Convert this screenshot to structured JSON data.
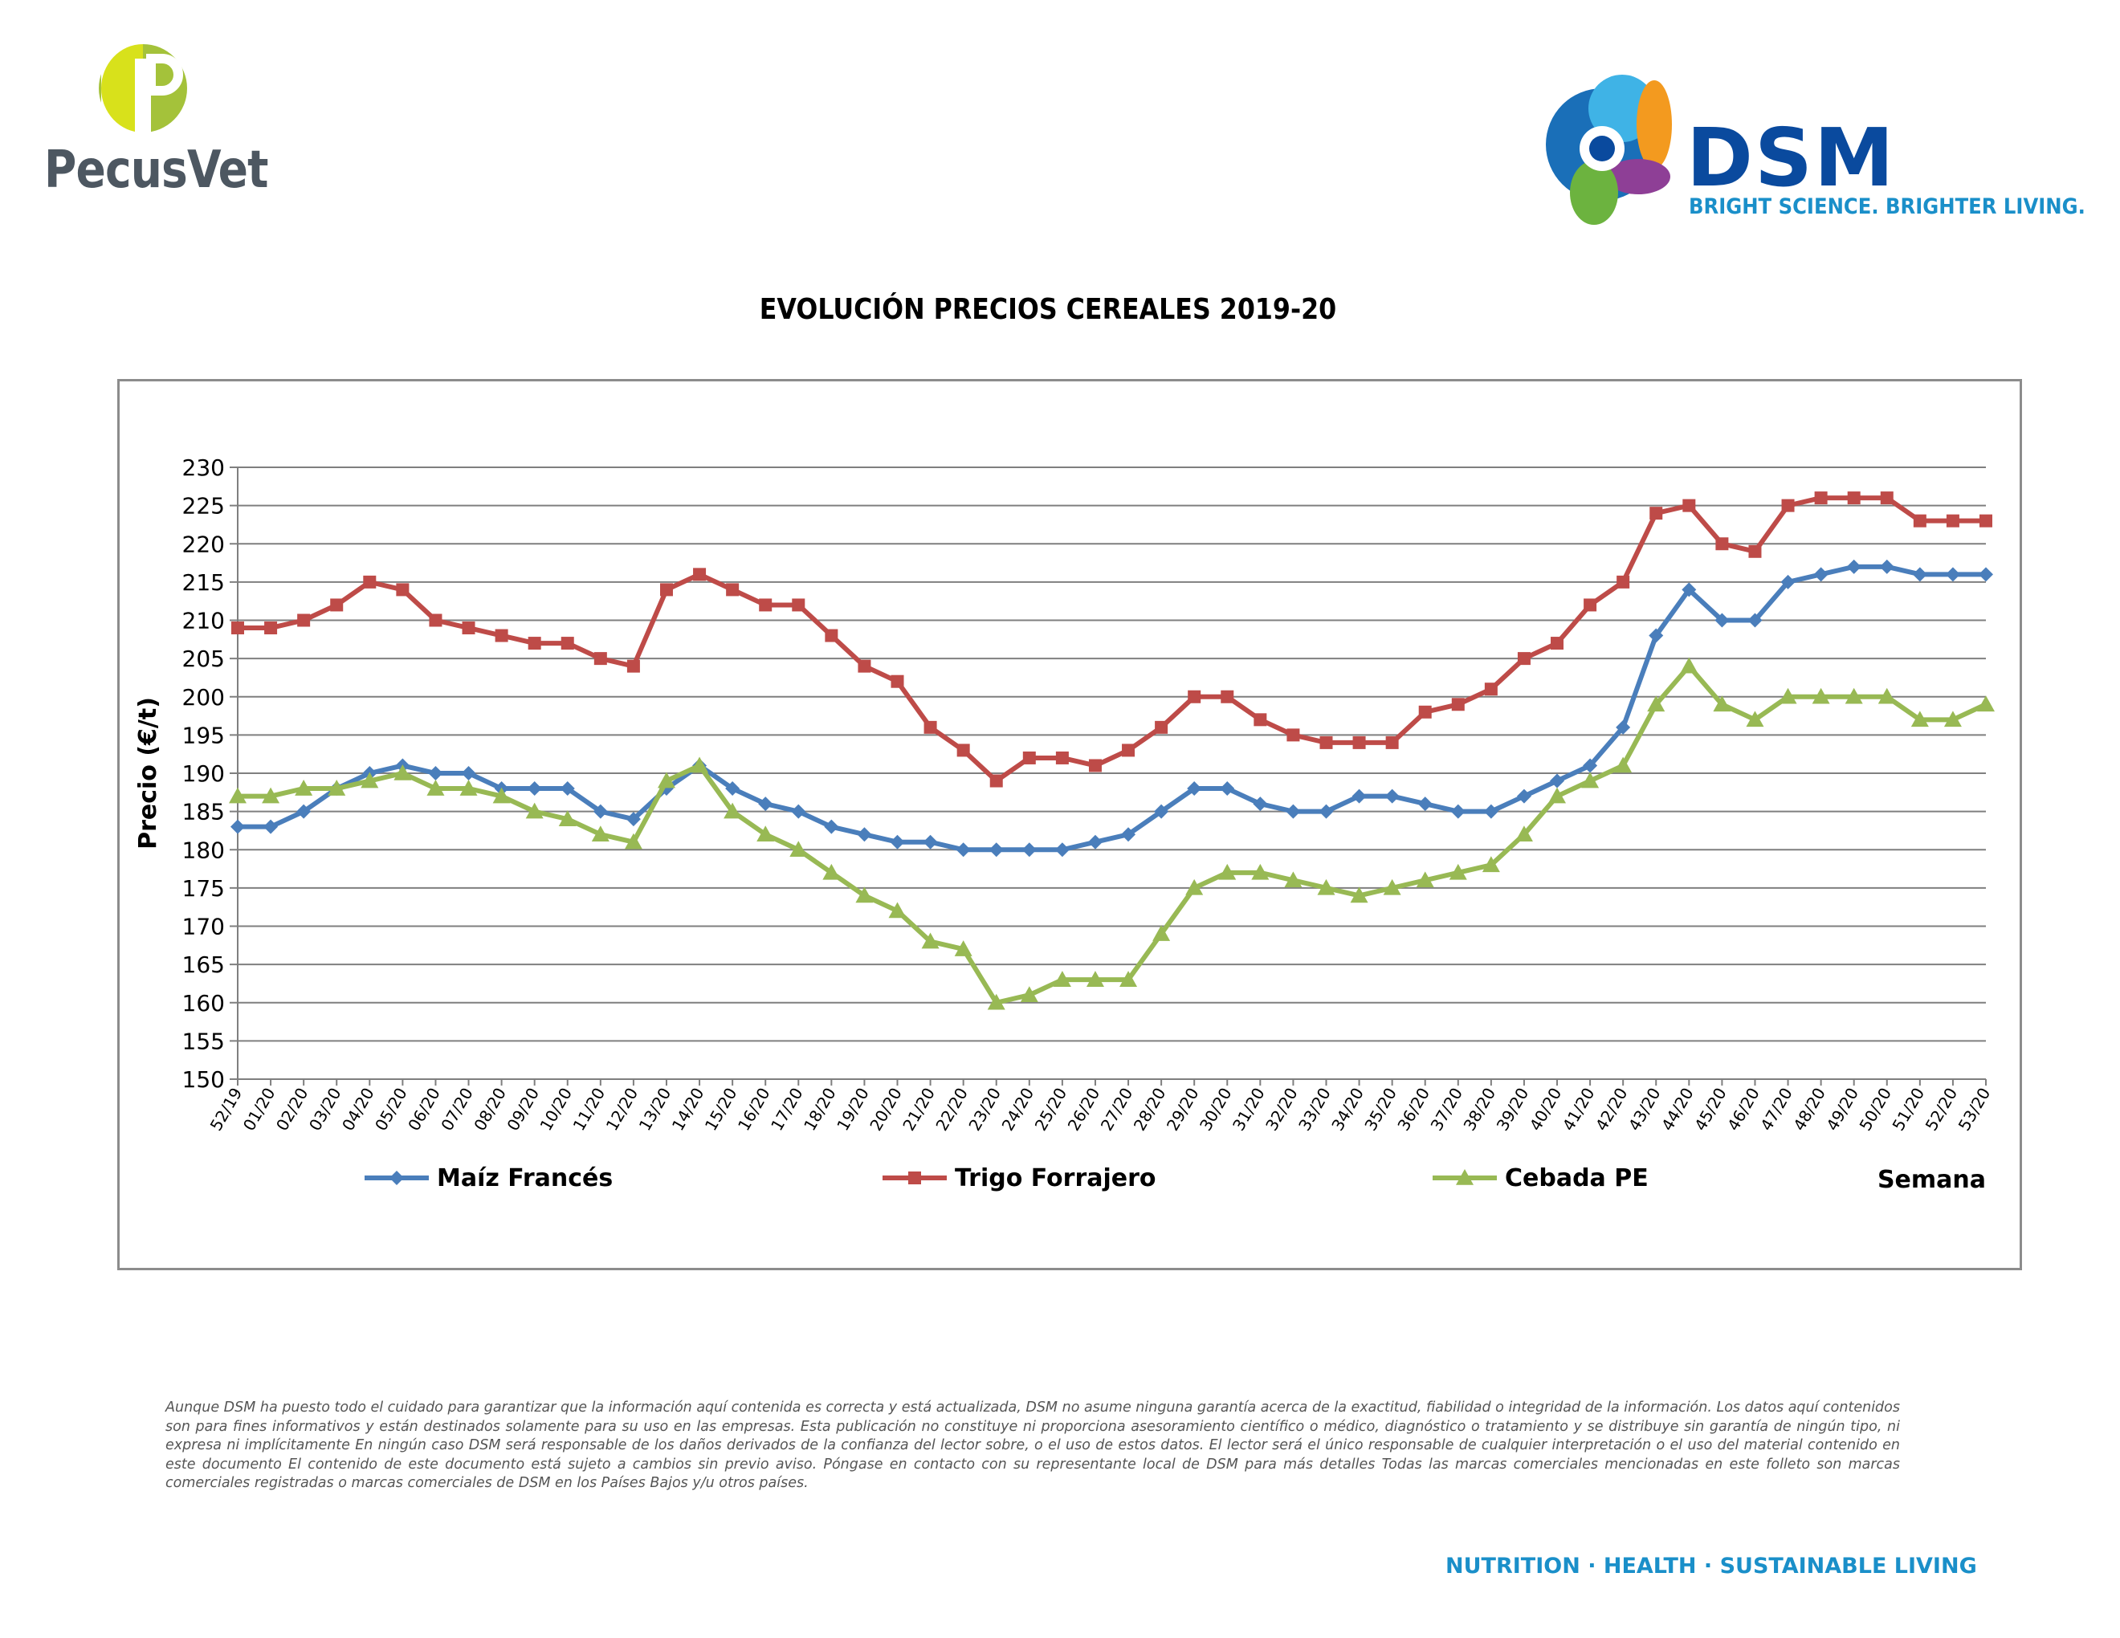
{
  "logos": {
    "pecusvet": {
      "name": "PecusVet",
      "color": "#a4c23a",
      "text_color": "#4d5761"
    },
    "dsm": {
      "name": "DSM",
      "tagline": "BRIGHT SCIENCE. BRIGHTER LIVING.",
      "color": "#0a4a9e",
      "tag_color": "#1a8fc9"
    }
  },
  "chart_data": {
    "type": "line",
    "title": "EVOLUCIÓN PRECIOS CEREALES 2019-20",
    "ylabel": "Precio (€/t)",
    "xlabel": "Semana",
    "ylim": [
      150,
      230
    ],
    "ytick_step": 5,
    "grid": true,
    "legend_position": "bottom",
    "categories": [
      "52/19",
      "01/20",
      "02/20",
      "03/20",
      "04/20",
      "05/20",
      "06/20",
      "07/20",
      "08/20",
      "09/20",
      "10/20",
      "11/20",
      "12/20",
      "13/20",
      "14/20",
      "15/20",
      "16/20",
      "17/20",
      "18/20",
      "19/20",
      "20/20",
      "21/20",
      "22/20",
      "23/20",
      "24/20",
      "25/20",
      "26/20",
      "27/20",
      "28/20",
      "29/20",
      "30/20",
      "31/20",
      "32/20",
      "33/20",
      "34/20",
      "35/20",
      "36/20",
      "37/20",
      "38/20",
      "39/20",
      "40/20",
      "41/20",
      "42/20",
      "43/20",
      "44/20",
      "45/20",
      "46/20",
      "47/20",
      "48/20",
      "49/20",
      "50/20",
      "51/20",
      "52/20",
      "53/20"
    ],
    "series": [
      {
        "name": "Maíz Francés",
        "color": "#4a7ebb",
        "marker": "diamond",
        "values": [
          183,
          183,
          185,
          188,
          190,
          191,
          190,
          190,
          188,
          188,
          188,
          185,
          184,
          188,
          191,
          188,
          186,
          185,
          183,
          182,
          181,
          181,
          180,
          180,
          180,
          180,
          181,
          182,
          185,
          188,
          188,
          186,
          185,
          185,
          187,
          187,
          186,
          185,
          185,
          187,
          189,
          191,
          196,
          208,
          214,
          210,
          210,
          215,
          216,
          217,
          217,
          216,
          216,
          216
        ]
      },
      {
        "name": "Trigo Forrajero",
        "color": "#be4b48",
        "marker": "square",
        "values": [
          209,
          209,
          210,
          212,
          215,
          214,
          210,
          209,
          208,
          207,
          207,
          205,
          204,
          214,
          216,
          214,
          212,
          212,
          208,
          204,
          202,
          196,
          193,
          189,
          192,
          192,
          191,
          193,
          196,
          200,
          200,
          197,
          195,
          194,
          194,
          194,
          198,
          199,
          201,
          205,
          207,
          212,
          215,
          224,
          225,
          220,
          219,
          225,
          226,
          226,
          226,
          223,
          223,
          223
        ]
      },
      {
        "name": "Cebada PE",
        "color": "#98b954",
        "marker": "triangle",
        "values": [
          187,
          187,
          188,
          188,
          189,
          190,
          188,
          188,
          187,
          185,
          184,
          182,
          181,
          189,
          191,
          185,
          182,
          180,
          177,
          174,
          172,
          168,
          167,
          160,
          161,
          163,
          163,
          163,
          169,
          175,
          177,
          177,
          176,
          175,
          174,
          175,
          176,
          177,
          178,
          182,
          187,
          189,
          191,
          199,
          204,
          199,
          197,
          200,
          200,
          200,
          200,
          197,
          197,
          199
        ]
      }
    ]
  },
  "disclaimer": "Aunque DSM ha puesto todo el cuidado para garantizar que la información aquí contenida es correcta y está actualizada, DSM no asume ninguna garantía acerca de la exactitud, fiabilidad o integridad de la información. Los datos aquí contenidos son para fines informativos y están destinados solamente para su uso en las empresas. Esta publicación no constituye ni proporciona asesoramiento científico o médico, diagnóstico o tratamiento y se distribuye sin garantía de ningún tipo, ni expresa ni implícitamente En ningún caso DSM será responsable de los daños derivados de la confianza del lector sobre, o el uso de estos datos. El lector será el único responsable de cualquier interpretación o el uso del material contenido en este documento El contenido de este documento está sujeto a cambios sin previo aviso. Póngase en contacto con su representante local de DSM para más detalles Todas las marcas comerciales mencionadas en este folleto son marcas comerciales registradas o marcas comerciales de DSM en los Países Bajos y/u otros países.",
  "footer_tagline": "NUTRITION · HEALTH · SUSTAINABLE LIVING"
}
